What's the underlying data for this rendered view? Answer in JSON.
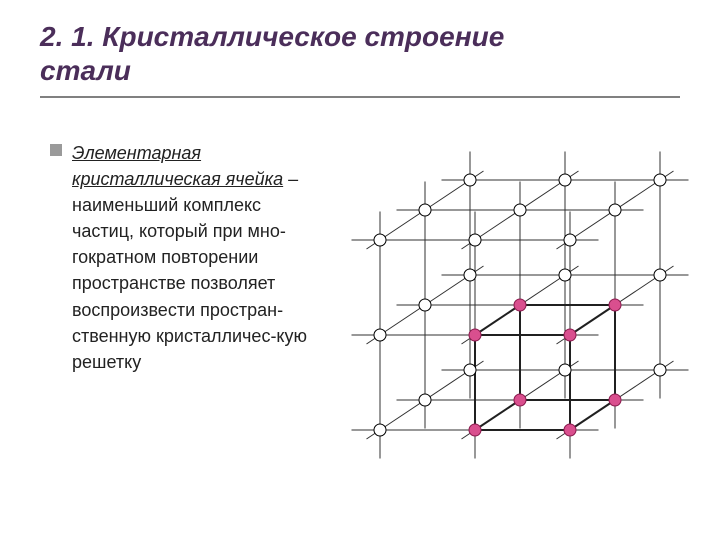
{
  "title_line1": "2. 1. Кристаллическое строение",
  "title_line2": "стали",
  "term": "Элементарная кристаллическая ячейка",
  "body_rest": " – наименьший комплекс частиц, который при мно-гократном повторении пространстве позволяет воспроизвести простран-ственную кристалличес-кую решетку",
  "colors": {
    "title": "#4b2e5a",
    "underline": "#808080",
    "bullet": "#9a9a9a",
    "text": "#222222",
    "node_fill": "#ffffff",
    "node_stroke": "#000000",
    "highlight_fill": "#d94f8e",
    "highlight_stroke": "#8a1a4d",
    "line": "#303030",
    "inner_line": "#202020"
  },
  "diagram": {
    "type": "network",
    "outer_nodes_radius": 6,
    "inner_nodes_radius": 6,
    "line_width": 1,
    "inner_line_width": 2
  }
}
